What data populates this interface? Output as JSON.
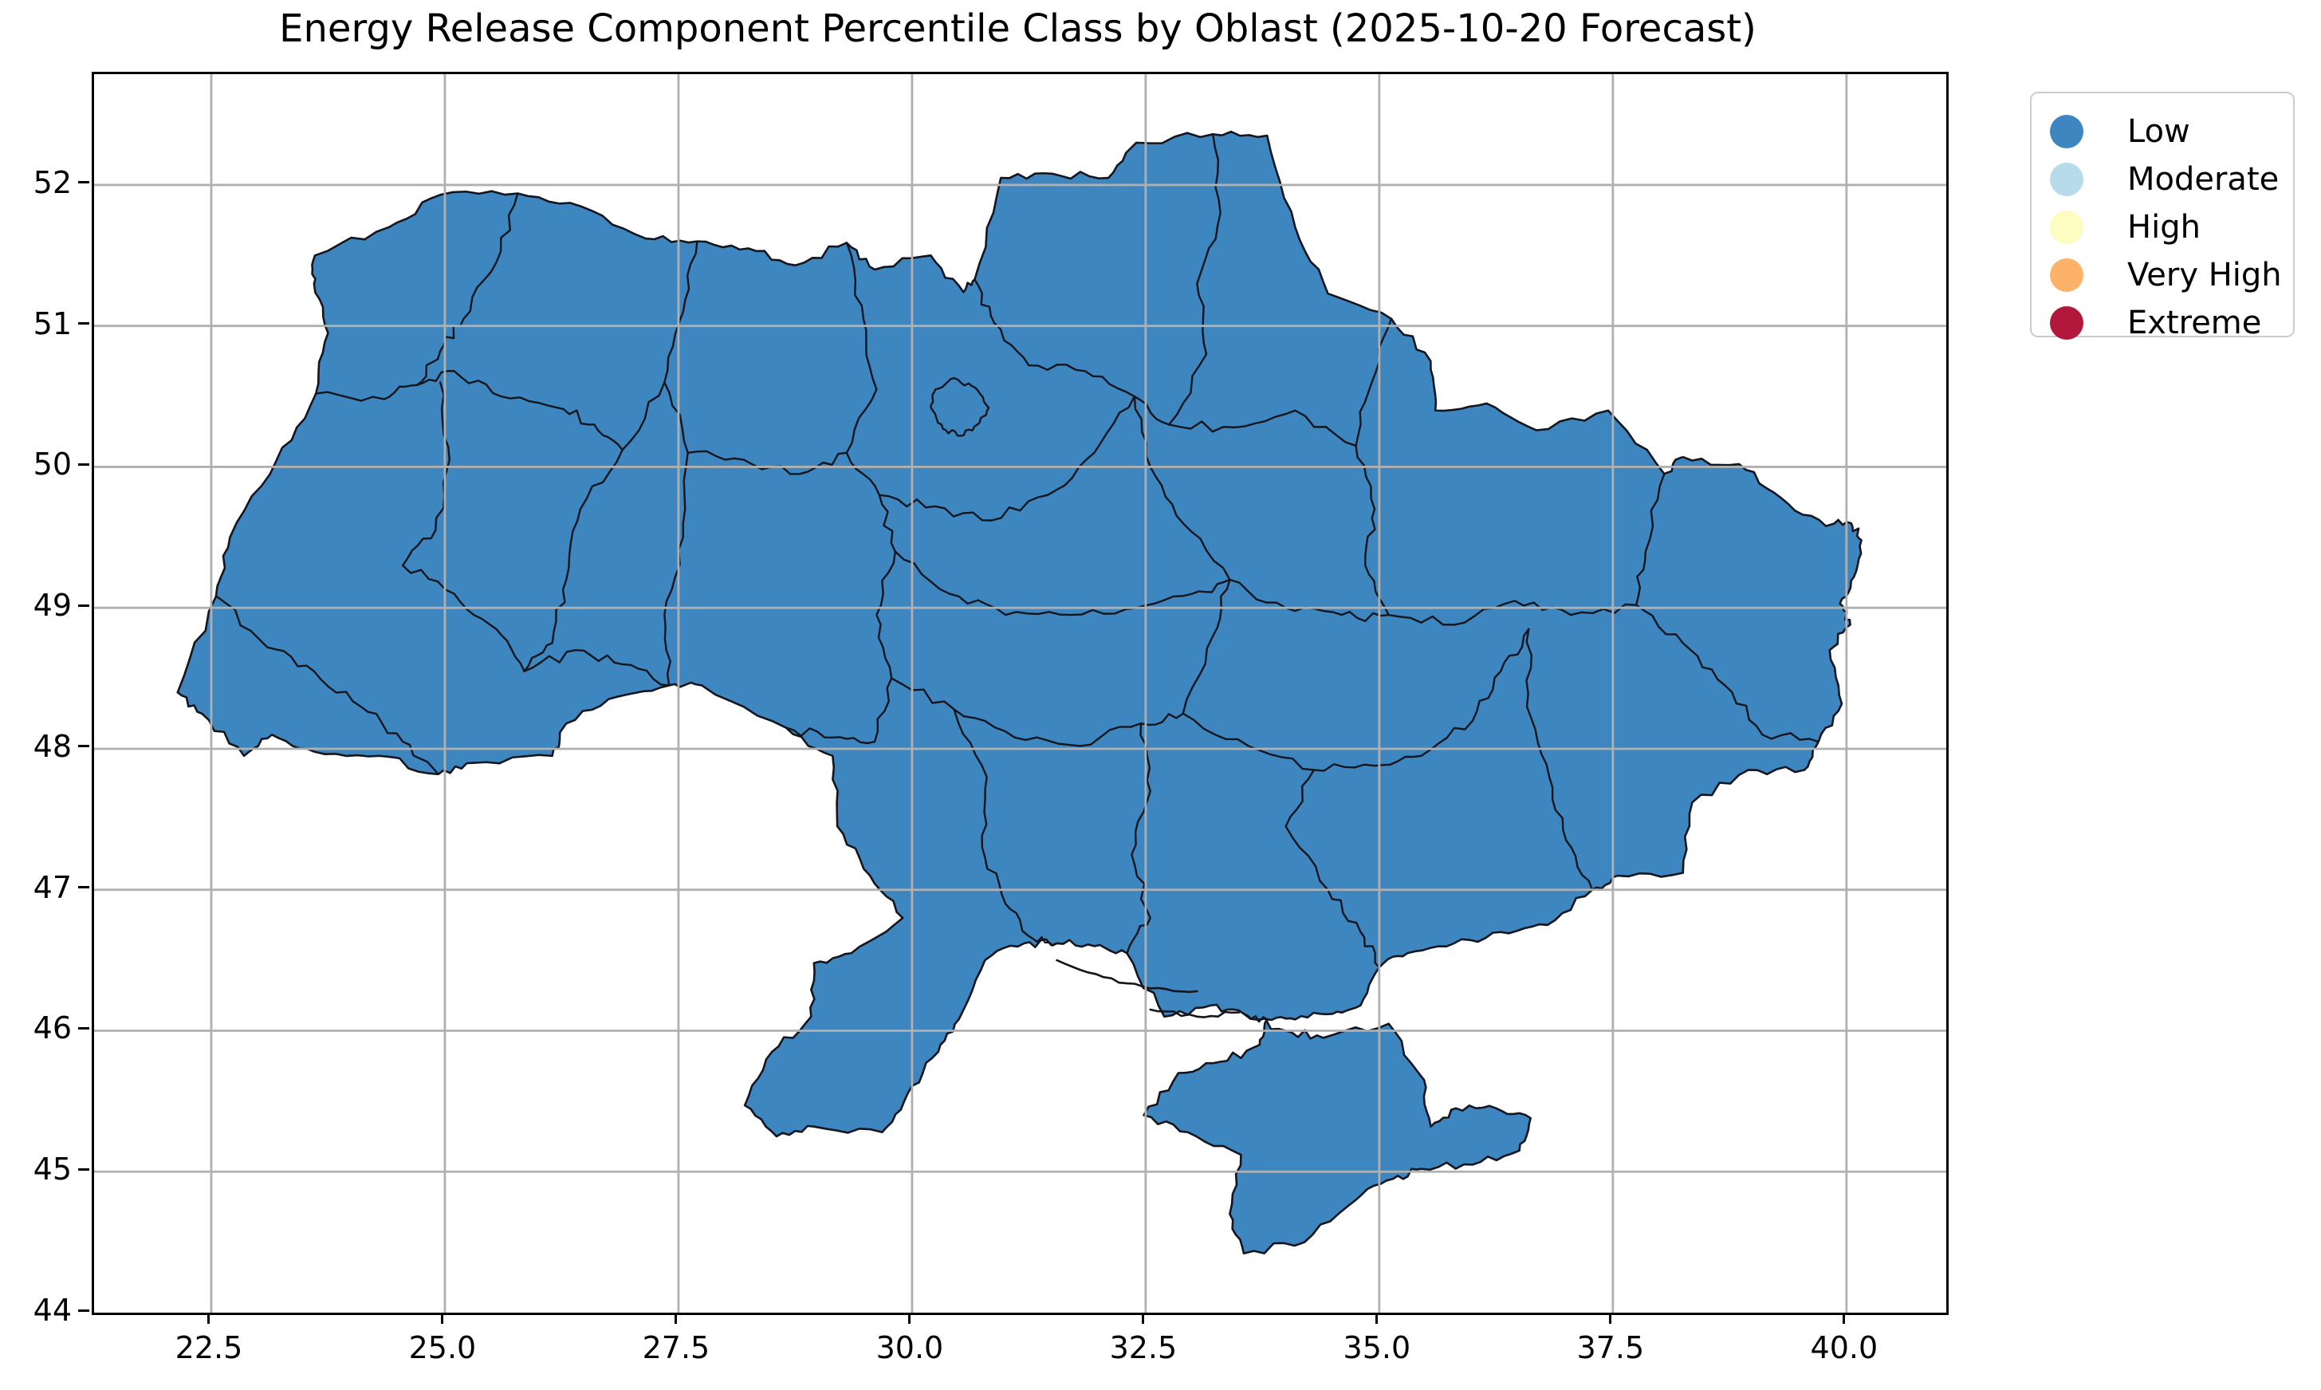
{
  "title": "Energy Release Component Percentile Class by Oblast (2025-10-20 Forecast)",
  "chart_data": {
    "type": "choropleth-map",
    "title": "Energy Release Component Percentile Class by Oblast (2025-10-20 Forecast)",
    "data": {
      "all_regions_class": "Low"
    },
    "legend": {
      "position": "upper right outside",
      "entries": [
        {
          "label": "Low",
          "color": "#3e86c0"
        },
        {
          "label": "Moderate",
          "color": "#b7dbea"
        },
        {
          "label": "High",
          "color": "#fdfdc2"
        },
        {
          "label": "Very High",
          "color": "#fcb269"
        },
        {
          "label": "Extreme",
          "color": "#b2173c"
        }
      ]
    },
    "map_style": {
      "fill": "#3e86c0",
      "border": "#15151d",
      "grid": "#b0b0b0"
    },
    "grid": true,
    "x_axis": {
      "range": [
        21.246,
        41.068
      ],
      "tick_labels": [
        "22.5",
        "25.0",
        "27.5",
        "30.0",
        "32.5",
        "35.0",
        "37.5",
        "40.0"
      ]
    },
    "y_axis": {
      "range": [
        44.0,
        52.786
      ],
      "tick_labels": [
        "44",
        "45",
        "46",
        "47",
        "48",
        "49",
        "50",
        "51",
        "52"
      ]
    },
    "geometry": {
      "outer_ring": [
        [
          22.14,
          48.4
        ],
        [
          22.55,
          49.08
        ],
        [
          22.7,
          49.5
        ],
        [
          23.2,
          50.05
        ],
        [
          23.62,
          50.52
        ],
        [
          23.75,
          50.95
        ],
        [
          23.6,
          51.3
        ],
        [
          23.61,
          51.5
        ],
        [
          24.4,
          51.7
        ],
        [
          24.95,
          51.93
        ],
        [
          25.78,
          51.94
        ],
        [
          26.45,
          51.85
        ],
        [
          27.15,
          51.62
        ],
        [
          27.7,
          51.6
        ],
        [
          28.25,
          51.55
        ],
        [
          28.75,
          51.43
        ],
        [
          29.3,
          51.59
        ],
        [
          29.6,
          51.4
        ],
        [
          30.2,
          51.5
        ],
        [
          30.55,
          51.24
        ],
        [
          30.67,
          51.33
        ],
        [
          30.95,
          52.05
        ],
        [
          31.5,
          52.08
        ],
        [
          32.1,
          52.05
        ],
        [
          32.4,
          52.3
        ],
        [
          33.22,
          52.36
        ],
        [
          33.8,
          52.35
        ],
        [
          34.1,
          51.7
        ],
        [
          34.45,
          51.23
        ],
        [
          35.13,
          51.05
        ],
        [
          35.55,
          50.75
        ],
        [
          35.6,
          50.4
        ],
        [
          36.15,
          50.45
        ],
        [
          36.68,
          50.26
        ],
        [
          37.45,
          50.4
        ],
        [
          38.05,
          49.95
        ],
        [
          38.25,
          50.07
        ],
        [
          38.85,
          50.02
        ],
        [
          39.3,
          49.78
        ],
        [
          39.78,
          49.58
        ],
        [
          40.05,
          49.6
        ],
        [
          40.16,
          49.48
        ],
        [
          40.08,
          49.22
        ],
        [
          39.93,
          49.03
        ],
        [
          40.04,
          48.88
        ],
        [
          39.82,
          48.7
        ],
        [
          39.95,
          48.32
        ],
        [
          39.7,
          48.05
        ],
        [
          39.55,
          47.85
        ],
        [
          38.95,
          47.85
        ],
        [
          38.35,
          47.62
        ],
        [
          38.25,
          47.12
        ],
        [
          37.55,
          47.1
        ],
        [
          37.28,
          47.0
        ],
        [
          36.8,
          46.75
        ],
        [
          36.3,
          46.7
        ],
        [
          35.8,
          46.62
        ],
        [
          35.3,
          46.55
        ],
        [
          35.0,
          46.45
        ],
        [
          34.8,
          46.18
        ],
        [
          34.5,
          46.12
        ],
        [
          34.1,
          46.08
        ],
        [
          33.8,
          46.08
        ],
        [
          33.72,
          45.9
        ],
        [
          33.3,
          45.78
        ],
        [
          32.85,
          45.7
        ],
        [
          32.48,
          45.4
        ],
        [
          32.95,
          45.28
        ],
        [
          33.52,
          45.12
        ],
        [
          33.4,
          44.7
        ],
        [
          33.55,
          44.42
        ],
        [
          34.2,
          44.5
        ],
        [
          34.75,
          44.8
        ],
        [
          35.15,
          44.95
        ],
        [
          35.45,
          45.02
        ],
        [
          36.0,
          45.05
        ],
        [
          36.5,
          45.15
        ],
        [
          36.62,
          45.38
        ],
        [
          36.25,
          45.45
        ],
        [
          35.82,
          45.45
        ],
        [
          35.55,
          45.32
        ],
        [
          35.48,
          45.65
        ],
        [
          35.1,
          46.05
        ],
        [
          34.4,
          45.95
        ],
        [
          34.0,
          46.0
        ],
        [
          33.55,
          46.12
        ],
        [
          33.2,
          46.18
        ],
        [
          32.7,
          46.1
        ],
        [
          32.3,
          46.55
        ],
        [
          31.95,
          46.6
        ],
        [
          31.55,
          46.62
        ],
        [
          31.2,
          46.62
        ],
        [
          30.78,
          46.5
        ],
        [
          30.5,
          46.08
        ],
        [
          30.28,
          45.85
        ],
        [
          29.95,
          45.55
        ],
        [
          29.68,
          45.28
        ],
        [
          28.95,
          45.32
        ],
        [
          28.55,
          45.25
        ],
        [
          28.21,
          45.47
        ],
        [
          28.5,
          45.85
        ],
        [
          28.92,
          46.1
        ],
        [
          28.95,
          46.48
        ],
        [
          29.35,
          46.55
        ],
        [
          29.9,
          46.8
        ],
        [
          29.55,
          47.1
        ],
        [
          29.2,
          47.45
        ],
        [
          29.15,
          47.95
        ],
        [
          28.65,
          48.15
        ],
        [
          27.75,
          48.45
        ],
        [
          27.4,
          48.45
        ],
        [
          26.85,
          48.37
        ],
        [
          26.3,
          48.18
        ],
        [
          26.15,
          47.95
        ],
        [
          25.3,
          47.9
        ],
        [
          24.93,
          47.82
        ],
        [
          24.3,
          47.95
        ],
        [
          23.6,
          47.98
        ],
        [
          23.15,
          48.1
        ],
        [
          22.85,
          47.95
        ],
        [
          22.4,
          48.25
        ]
      ],
      "internal_borders": [
        [
          [
            25.78,
            51.94
          ],
          [
            25.55,
            51.45
          ],
          [
            25.2,
            51.05
          ],
          [
            24.95,
            50.82
          ],
          [
            24.7,
            50.58
          ]
        ],
        [
          [
            23.62,
            50.52
          ],
          [
            24.35,
            50.48
          ],
          [
            24.7,
            50.58
          ],
          [
            25.1,
            50.68
          ],
          [
            25.6,
            50.5
          ],
          [
            26.2,
            50.42
          ],
          [
            26.6,
            50.3
          ],
          [
            26.9,
            50.12
          ]
        ],
        [
          [
            27.7,
            51.6
          ],
          [
            27.55,
            51.1
          ],
          [
            27.35,
            50.6
          ],
          [
            26.9,
            50.12
          ]
        ],
        [
          [
            24.95,
            50.6
          ],
          [
            25.05,
            50.05
          ],
          [
            24.9,
            49.55
          ],
          [
            24.55,
            49.3
          ]
        ],
        [
          [
            22.56,
            49.08
          ],
          [
            23.1,
            48.72
          ],
          [
            23.6,
            48.55
          ],
          [
            24.1,
            48.3
          ],
          [
            24.55,
            48.05
          ],
          [
            24.93,
            47.82
          ]
        ],
        [
          [
            24.55,
            49.3
          ],
          [
            25.1,
            49.1
          ],
          [
            25.55,
            48.85
          ],
          [
            25.85,
            48.55
          ]
        ],
        [
          [
            25.85,
            48.55
          ],
          [
            26.4,
            48.7
          ],
          [
            26.9,
            48.6
          ],
          [
            27.4,
            48.45
          ]
        ],
        [
          [
            27.35,
            50.6
          ],
          [
            27.6,
            50.1
          ],
          [
            27.55,
            49.5
          ],
          [
            27.35,
            48.95
          ],
          [
            27.4,
            48.45
          ]
        ],
        [
          [
            26.9,
            50.12
          ],
          [
            26.45,
            49.7
          ],
          [
            26.3,
            49.2
          ],
          [
            26.15,
            48.75
          ],
          [
            25.85,
            48.55
          ]
        ],
        [
          [
            29.3,
            51.59
          ],
          [
            29.48,
            51.05
          ],
          [
            29.62,
            50.55
          ],
          [
            29.3,
            50.1
          ],
          [
            29.65,
            49.8
          ]
        ],
        [
          [
            27.6,
            50.1
          ],
          [
            28.2,
            50.05
          ],
          [
            28.8,
            49.95
          ],
          [
            29.3,
            50.1
          ]
        ],
        [
          [
            28.65,
            48.15
          ],
          [
            29.15,
            48.08
          ],
          [
            29.6,
            48.05
          ],
          [
            29.78,
            48.5
          ],
          [
            29.62,
            48.95
          ],
          [
            29.82,
            49.4
          ],
          [
            29.65,
            49.8
          ]
        ],
        [
          [
            30.67,
            51.33
          ],
          [
            30.88,
            51.02
          ],
          [
            31.25,
            50.72
          ],
          [
            31.85,
            50.68
          ],
          [
            32.38,
            50.5
          ],
          [
            32.75,
            50.3
          ]
        ],
        [
          [
            33.22,
            52.36
          ],
          [
            33.3,
            51.8
          ],
          [
            33.05,
            51.3
          ],
          [
            33.15,
            50.8
          ],
          [
            32.75,
            50.3
          ]
        ],
        [
          [
            32.75,
            50.3
          ],
          [
            33.45,
            50.28
          ],
          [
            34.1,
            50.4
          ],
          [
            34.75,
            50.15
          ]
        ],
        [
          [
            35.13,
            51.05
          ],
          [
            34.92,
            50.6
          ],
          [
            34.75,
            50.15
          ]
        ],
        [
          [
            29.65,
            49.8
          ],
          [
            30.25,
            49.72
          ],
          [
            30.85,
            49.62
          ],
          [
            31.45,
            49.8
          ],
          [
            31.95,
            50.1
          ],
          [
            32.38,
            50.5
          ]
        ],
        [
          [
            32.38,
            50.5
          ],
          [
            32.55,
            50.0
          ],
          [
            32.9,
            49.6
          ],
          [
            33.4,
            49.2
          ]
        ],
        [
          [
            29.82,
            49.4
          ],
          [
            30.4,
            49.1
          ],
          [
            31.0,
            48.95
          ],
          [
            31.7,
            48.95
          ],
          [
            32.4,
            49.0
          ],
          [
            33.0,
            49.1
          ],
          [
            33.4,
            49.2
          ]
        ],
        [
          [
            29.78,
            48.5
          ],
          [
            30.45,
            48.28
          ],
          [
            31.1,
            48.08
          ],
          [
            31.8,
            48.02
          ],
          [
            32.45,
            48.18
          ],
          [
            32.9,
            48.25
          ]
        ],
        [
          [
            33.4,
            49.2
          ],
          [
            33.22,
            48.8
          ],
          [
            32.9,
            48.25
          ]
        ],
        [
          [
            30.45,
            48.28
          ],
          [
            30.8,
            47.8
          ],
          [
            30.75,
            47.3
          ],
          [
            31.0,
            46.9
          ],
          [
            31.3,
            46.65
          ],
          [
            31.55,
            46.62
          ]
        ],
        [
          [
            32.45,
            48.18
          ],
          [
            32.55,
            47.7
          ],
          [
            32.35,
            47.25
          ],
          [
            32.55,
            46.8
          ],
          [
            32.3,
            46.55
          ]
        ],
        [
          [
            32.9,
            48.25
          ],
          [
            33.6,
            48.02
          ],
          [
            34.3,
            47.85
          ],
          [
            34.95,
            47.88
          ],
          [
            35.45,
            47.95
          ],
          [
            36.0,
            48.2
          ],
          [
            36.3,
            48.55
          ],
          [
            36.6,
            48.85
          ]
        ],
        [
          [
            34.75,
            50.15
          ],
          [
            34.95,
            49.7
          ],
          [
            34.85,
            49.3
          ],
          [
            35.1,
            48.95
          ]
        ],
        [
          [
            33.4,
            49.2
          ],
          [
            34.0,
            49.0
          ],
          [
            34.6,
            48.95
          ],
          [
            35.1,
            48.95
          ]
        ],
        [
          [
            35.1,
            48.95
          ],
          [
            35.8,
            48.88
          ],
          [
            36.45,
            49.05
          ],
          [
            37.05,
            48.95
          ],
          [
            37.75,
            49.02
          ]
        ],
        [
          [
            37.75,
            49.02
          ],
          [
            37.85,
            49.4
          ],
          [
            38.05,
            49.95
          ]
        ],
        [
          [
            37.75,
            49.02
          ],
          [
            38.25,
            48.75
          ],
          [
            38.7,
            48.45
          ],
          [
            39.1,
            48.1
          ],
          [
            39.7,
            48.05
          ]
        ],
        [
          [
            36.6,
            48.85
          ],
          [
            36.58,
            48.3
          ],
          [
            36.82,
            47.8
          ],
          [
            37.0,
            47.35
          ],
          [
            37.28,
            47.0
          ]
        ],
        [
          [
            34.3,
            47.85
          ],
          [
            34.0,
            47.45
          ],
          [
            34.45,
            47.0
          ],
          [
            34.8,
            46.7
          ],
          [
            35.0,
            46.45
          ]
        ],
        [
          [
            33.55,
            46.12
          ],
          [
            33.8,
            46.08
          ]
        ]
      ],
      "kyiv_city_ring": [
        [
          30.25,
          50.55
        ],
        [
          30.45,
          50.63
        ],
        [
          30.68,
          50.56
        ],
        [
          30.82,
          50.42
        ],
        [
          30.7,
          50.3
        ],
        [
          30.52,
          50.22
        ],
        [
          30.33,
          50.27
        ],
        [
          30.2,
          50.42
        ]
      ],
      "coastal_spits": [
        [
          [
            31.55,
            46.5
          ],
          [
            32.05,
            46.38
          ],
          [
            32.55,
            46.3
          ],
          [
            33.05,
            46.28
          ]
        ],
        [
          [
            32.55,
            46.15
          ],
          [
            33.05,
            46.1
          ],
          [
            33.5,
            46.13
          ]
        ]
      ]
    }
  }
}
